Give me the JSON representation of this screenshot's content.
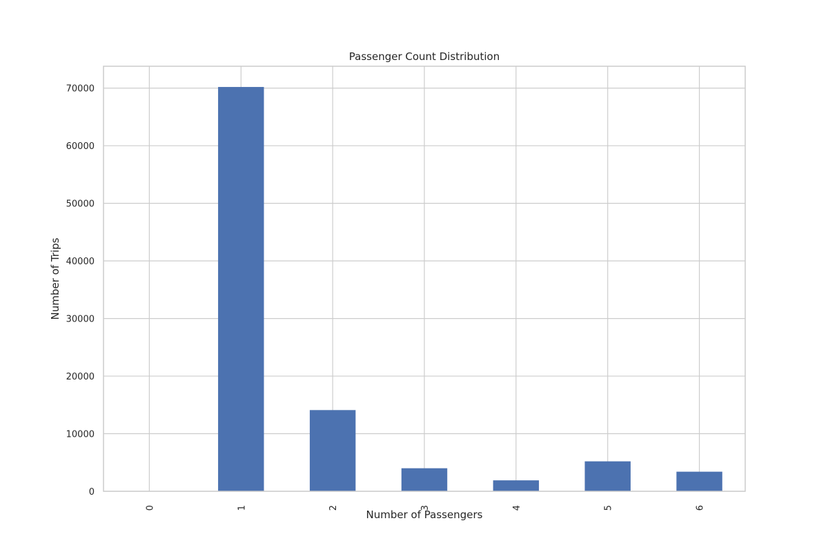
{
  "chart_data": {
    "type": "bar",
    "title": "Passenger Count Distribution",
    "xlabel": "Number of Passengers",
    "ylabel": "Number of Trips",
    "categories": [
      "0",
      "1",
      "2",
      "3",
      "4",
      "5",
      "6"
    ],
    "values": [
      10,
      70200,
      14100,
      4000,
      1900,
      5200,
      3400
    ],
    "ylim": [
      0,
      73800
    ],
    "yticks": [
      0,
      10000,
      20000,
      30000,
      40000,
      50000,
      60000,
      70000
    ],
    "ytick_labels": [
      "0",
      "10000",
      "20000",
      "30000",
      "40000",
      "50000",
      "60000",
      "70000"
    ],
    "grid": true,
    "bar_color": "#4c72b0",
    "grid_color": "#cccccc",
    "xtick_rotation": "vertical"
  }
}
